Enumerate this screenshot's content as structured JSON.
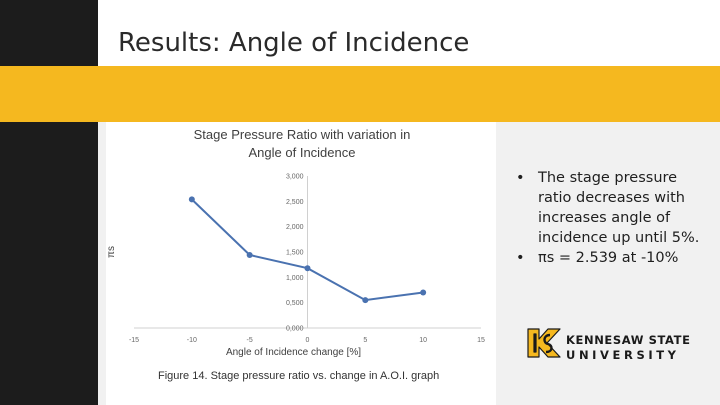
{
  "slide": {
    "title": "Results: Angle of Incidence",
    "caption": "Figure 14. Stage pressure ratio vs. change in A.O.I. graph",
    "bullets": [
      "The stage pressure ratio decreases with increases angle of incidence up until 5%.",
      "πs = 2.539 at -10%"
    ],
    "bullet_marker": "•",
    "logo": {
      "line1": "KENNESAW STATE",
      "line2": "UNIVERSITY",
      "icon": "ksu-monogram-icon"
    }
  },
  "colors": {
    "accent_gold": "#f5b81f",
    "dark_bar": "#1c1c1c",
    "series": "#4a72b0"
  },
  "chart_data": {
    "type": "line",
    "title": "Stage Pressure Ratio with variation in Angle of Incidence",
    "title_lines": [
      "Stage Pressure Ratio with variation in",
      "Angle of Incidence"
    ],
    "xlabel": "Angle of Incidence change [%]",
    "ylabel": "πs",
    "xlim": [
      -15,
      15
    ],
    "ylim": [
      0,
      3
    ],
    "x_ticks": [
      "-15",
      "-10",
      "-5",
      "0",
      "5",
      "10",
      "15"
    ],
    "y_ticks": [
      "0,000",
      "0,500",
      "1,000",
      "1,500",
      "2,000",
      "2,500",
      "3,000"
    ],
    "grid": false,
    "legend": "none",
    "series": [
      {
        "x": [
          -10,
          -5,
          0,
          5,
          10
        ],
        "y": [
          2.539,
          1.44,
          1.18,
          0.55,
          0.7
        ]
      }
    ]
  }
}
